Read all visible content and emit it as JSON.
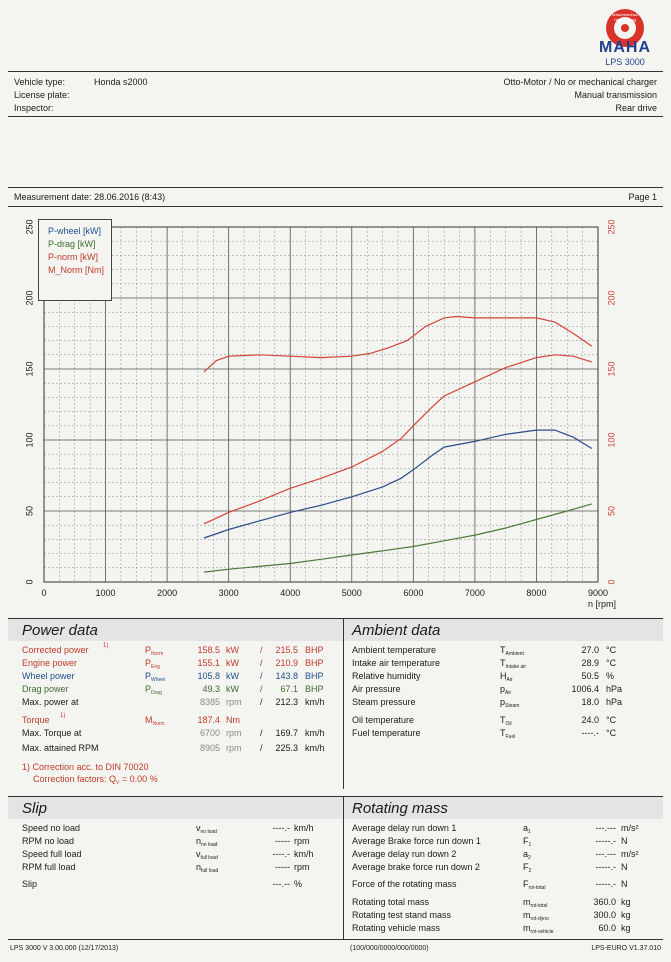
{
  "logo": {
    "ring_text": "Maschinenbau Haldenwang",
    "brand": "MAHA",
    "model": "LPS 3000"
  },
  "vehicle": {
    "type_label": "Vehicle type:",
    "type_value": "Honda s2000",
    "plate_label": "License plate:",
    "inspector_label": "Inspector:",
    "engine": "Otto-Motor / No or mechanical charger",
    "transmission": "Manual transmission",
    "drive": "Rear drive"
  },
  "measurement": {
    "label": "Measurement date:",
    "date": "28.06.2016 (8:43)",
    "page": "Page 1"
  },
  "chart_data": {
    "type": "line",
    "x_unit": "n [rpm]",
    "x_ticks": [
      "0",
      "1000",
      "2000",
      "3000",
      "4000",
      "5000",
      "6000",
      "7000",
      "8000",
      "9000"
    ],
    "y_ticks": [
      "0",
      "50",
      "100",
      "150",
      "200",
      "250"
    ],
    "xlim": [
      0,
      9000
    ],
    "ylim": [
      0,
      250
    ],
    "legend": [
      "P-wheel [kW]",
      "P-drag [kW]",
      "P-norm [kW]",
      "M_Norm [Nm]"
    ],
    "series": [
      {
        "name": "P-wheel",
        "color": "#2b4c8a",
        "x": [
          2600,
          3000,
          3500,
          4000,
          4500,
          5000,
          5500,
          5800,
          6000,
          6300,
          6500,
          7000,
          7500,
          8000,
          8300,
          8600,
          8900
        ],
        "y": [
          31,
          37,
          43,
          49,
          54,
          60,
          67,
          73,
          79,
          89,
          95,
          99,
          104,
          107,
          107,
          102,
          94
        ]
      },
      {
        "name": "P-drag",
        "color": "#4e7a3a",
        "x": [
          2600,
          3000,
          3500,
          4000,
          4500,
          5000,
          5500,
          6000,
          6500,
          7000,
          7500,
          8000,
          8500,
          8900
        ],
        "y": [
          7,
          9,
          11,
          13,
          16,
          19,
          22,
          25,
          29,
          33,
          38,
          44,
          50,
          55
        ]
      },
      {
        "name": "P-norm",
        "color": "#d0443a",
        "x": [
          2600,
          3000,
          3500,
          4000,
          4500,
          5000,
          5500,
          5800,
          6000,
          6300,
          6500,
          7000,
          7500,
          8000,
          8300,
          8600,
          8900
        ],
        "y": [
          41,
          49,
          57,
          66,
          73,
          81,
          92,
          101,
          110,
          123,
          131,
          141,
          151,
          158,
          160,
          159,
          155
        ]
      },
      {
        "name": "M_Norm",
        "color": "#d0443a",
        "x": [
          2600,
          2800,
          3000,
          3500,
          4000,
          4500,
          5000,
          5300,
          5600,
          5900,
          6200,
          6500,
          6700,
          7000,
          7500,
          8000,
          8300,
          8600,
          8900
        ],
        "y": [
          148,
          156,
          159,
          160,
          159,
          158,
          159,
          161,
          165,
          170,
          180,
          186,
          187,
          186,
          186,
          186,
          183,
          175,
          166
        ]
      }
    ]
  },
  "power": {
    "title": "Power data",
    "rows": [
      {
        "label": "Corrected power",
        "note": "1)",
        "sym": "P",
        "sub": "Norm",
        "v1": "158.5",
        "u1": "kW",
        "sep": "/",
        "v2": "215.5",
        "u2": "BHP"
      },
      {
        "label": "Engine power",
        "sym": "P",
        "sub": "Eng",
        "v1": "155.1",
        "u1": "kW",
        "sep": "/",
        "v2": "210.9",
        "u2": "BHP"
      },
      {
        "label": "Wheel power",
        "sym": "P",
        "sub": "Wheel",
        "v1": "105.8",
        "u1": "kW",
        "sep": "/",
        "v2": "143.8",
        "u2": "BHP"
      },
      {
        "label": "Drag power",
        "sym": "P",
        "sub": "Drag",
        "v1": "49.3",
        "u1": "kW",
        "sep": "/",
        "v2": "67.1",
        "u2": "BHP"
      },
      {
        "label": "Max. power at",
        "v1": "8385",
        "u1": "rpm",
        "sep": "/",
        "v2": "212.3",
        "u2": "km/h"
      },
      {
        "label": "Torque",
        "note": "1)",
        "sym": "M",
        "sub": "Norm",
        "v1": "187.4",
        "u1": "Nm"
      },
      {
        "label": "Max. Torque at",
        "v1": "6700",
        "u1": "rpm",
        "sep": "/",
        "v2": "169.7",
        "u2": "km/h"
      },
      {
        "label": "Max. attained RPM",
        "v1": "8905",
        "u1": "rpm",
        "sep": "/",
        "v2": "225.3",
        "u2": "km/h"
      }
    ],
    "footnote1": "1) Correction acc. to DIN 70020",
    "footnote2": "Correction factors: Q",
    "footnote2_sub": "V",
    "footnote2_val": "= 0.00 %"
  },
  "ambient": {
    "title": "Ambient data",
    "rows": [
      {
        "label": "Ambient temperature",
        "sym": "T",
        "sub": "Ambient",
        "val": "27.0",
        "unit": "°C"
      },
      {
        "label": "Intake air temperature",
        "sym": "T",
        "sub": "Intake air",
        "val": "28.9",
        "unit": "°C"
      },
      {
        "label": "Relative humidity",
        "sym": "H",
        "sub": "Air",
        "val": "50.5",
        "unit": "%"
      },
      {
        "label": "Air pressure",
        "sym": "p",
        "sub": "Air",
        "val": "1006.4",
        "unit": "hPa"
      },
      {
        "label": "Steam pressure",
        "sym": "p",
        "sub": "Steam",
        "val": "18.0",
        "unit": "hPa"
      },
      {
        "label": "Oil temperature",
        "sym": "T",
        "sub": "Oil",
        "val": "24.0",
        "unit": "°C"
      },
      {
        "label": "Fuel temperature",
        "sym": "T",
        "sub": "Fuel",
        "val": "----.-",
        "unit": "°C"
      }
    ]
  },
  "slip": {
    "title": "Slip",
    "rows": [
      {
        "label": "Speed no load",
        "sym": "v",
        "sub": "no load",
        "val": "----.-",
        "unit": "km/h"
      },
      {
        "label": "RPM no load",
        "sym": "n",
        "sub": "no load",
        "val": "-----",
        "unit": "rpm"
      },
      {
        "label": "Speed full load",
        "sym": "v",
        "sub": "full load",
        "val": "----.-",
        "unit": "km/h"
      },
      {
        "label": "RPM full load",
        "sym": "n",
        "sub": "full load",
        "val": "-----",
        "unit": "rpm"
      },
      {
        "label": "Slip",
        "val": "---.--",
        "unit": "%"
      }
    ]
  },
  "rotating": {
    "title": "Rotating mass",
    "rows": [
      {
        "label": "Average delay run down 1",
        "sym": "a",
        "sub": "1",
        "val": "---.---",
        "unit": "m/s²"
      },
      {
        "label": "Average Brake force run down 1",
        "sym": "F",
        "sub": "1",
        "val": "-----.-",
        "unit": "N"
      },
      {
        "label": "Average delay run down 2",
        "sym": "a",
        "sub": "2",
        "val": "---.---",
        "unit": "m/s²"
      },
      {
        "label": "Average brake force run down 2",
        "sym": "F",
        "sub": "2",
        "val": "-----.-",
        "unit": "N"
      },
      {
        "label": "Force of the rotating mass",
        "sym": "F",
        "sub": "rot-total",
        "val": "-----.-",
        "unit": "N"
      },
      {
        "label": "Rotating total mass",
        "sym": "m",
        "sub": "rot-total",
        "val": "360.0",
        "unit": "kg"
      },
      {
        "label": "Rotating test stand mass",
        "sym": "m",
        "sub": "rot-dyno",
        "val": "300.0",
        "unit": "kg"
      },
      {
        "label": "Rotating vehicle mass",
        "sym": "m",
        "sub": "rot-vehicle",
        "val": "60.0",
        "unit": "kg"
      }
    ]
  },
  "footer": {
    "left": "LPS 3000 V 3.00.000 (12/17/2013)",
    "center": "(100/000/0000/000/0000)",
    "right": "LPS-EURO V1.37.010"
  }
}
